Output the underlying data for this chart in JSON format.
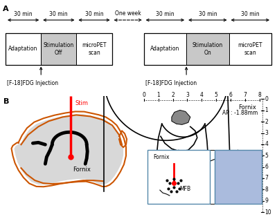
{
  "panel_A": {
    "label": "A",
    "session1": {
      "boxes": [
        {
          "label": "Adaptation",
          "gray": false
        },
        {
          "label": "Stimulation\nOff",
          "gray": true
        },
        {
          "label": "microPET\nscan",
          "gray": false
        }
      ],
      "times": [
        "30 min",
        "30 min",
        "30 min"
      ],
      "injection_label": "[F-18]FDG Injection"
    },
    "session2": {
      "boxes": [
        {
          "label": "Adaptation",
          "gray": false
        },
        {
          "label": "Stimulation\nOn",
          "gray": true
        },
        {
          "label": "microPET\nscan",
          "gray": false
        }
      ],
      "times": [
        "30 min",
        "30 min",
        "30 min"
      ],
      "injection_label": "[F-18]FDG Injection"
    },
    "one_week_label": "One week"
  },
  "panel_B": {
    "label": "B",
    "stim_label": "Stim",
    "fornix_label": "Fornix",
    "ap_label": "AP : -1.88mm",
    "fornix_atlas_label": "Fornix",
    "schema_fornix_label": "Fornix",
    "schema_mfb_label": "MFB",
    "ruler_h": [
      0,
      1,
      2,
      3,
      4,
      5,
      6,
      7,
      8
    ],
    "ruler_v": [
      0,
      1,
      2,
      3,
      4,
      5,
      6,
      7,
      8,
      9,
      10
    ]
  },
  "background_color": "#ffffff"
}
